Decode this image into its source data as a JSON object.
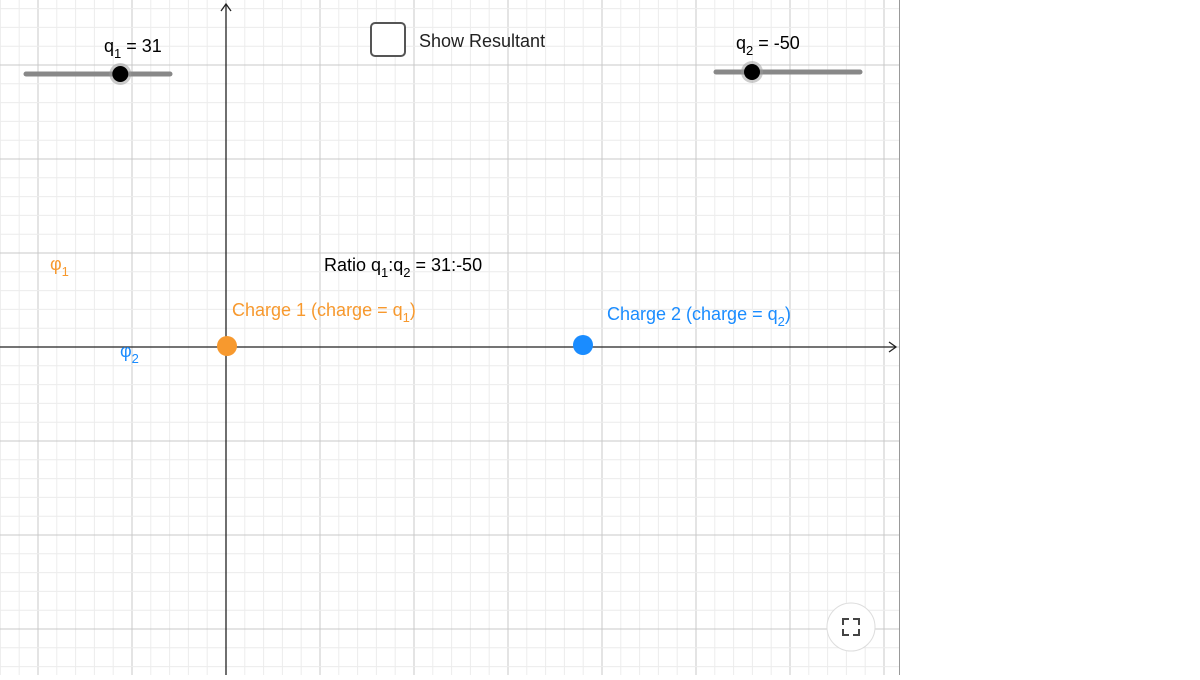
{
  "sliders": [
    {
      "label": [
        "q",
        "1",
        " = 31"
      ],
      "value": 31,
      "range": [
        -100,
        100
      ]
    },
    {
      "label": [
        "q",
        "2",
        " = -50"
      ],
      "value": -50,
      "range": [
        -100,
        100
      ]
    }
  ],
  "checkbox": {
    "label": "Show Resultant",
    "checked": false
  },
  "curve_labels": [
    [
      "φ",
      "1"
    ],
    [
      "φ",
      "2"
    ]
  ],
  "ratio": [
    "Ratio q",
    "1",
    ":q",
    "2",
    " = 31:-50"
  ],
  "charges": [
    [
      "Charge 1 (charge = q",
      "1",
      ")"
    ],
    [
      "Charge 2 (charge = q",
      "2",
      ")"
    ]
  ]
}
